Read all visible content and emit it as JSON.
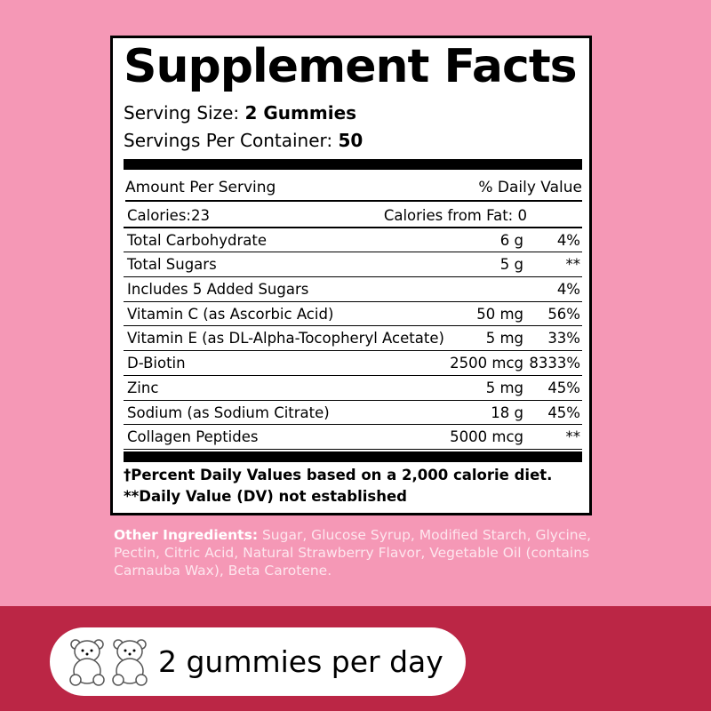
{
  "title": "Supplement Facts",
  "serving_size_label": "Serving Size:",
  "serving_size": "2 Gummies",
  "servings_label": "Servings Per Container:",
  "servings": "50",
  "header": {
    "amount": "Amount Per Serving",
    "dv": "% Daily Value"
  },
  "rows": [
    {
      "name": "Calories:23",
      "amount": "Calories from Fat: 0",
      "dv": ""
    },
    {
      "name": "Total Carbohydrate",
      "amount": "6 g",
      "dv": "4%"
    },
    {
      "name": "Total Sugars",
      "amount": "5 g",
      "dv": "**"
    },
    {
      "name": "Includes 5 Added Sugars",
      "amount": "",
      "dv": "4%"
    },
    {
      "name": "Vitamin C (as Ascorbic Acid)",
      "amount": "50 mg",
      "dv": "56%"
    },
    {
      "name": "Vitamin E (as DL-Alpha-Tocopheryl Acetate)",
      "amount": "5 mg",
      "dv": "33%"
    },
    {
      "name": "D-Biotin",
      "amount": "2500 mcg",
      "dv": "8333%"
    },
    {
      "name": "Zinc",
      "amount": "5 mg",
      "dv": "45%"
    },
    {
      "name": "Sodium (as Sodium Citrate)",
      "amount": "18 g",
      "dv": "45%"
    },
    {
      "name": "Collagen Peptides",
      "amount": "5000 mcg",
      "dv": "**"
    }
  ],
  "footnotes": [
    "†Percent Daily Values based on a 2,000 calorie diet.",
    "**Daily Value (DV) not established"
  ],
  "ingredients": {
    "label": "Other Ingredients:",
    "text": " Sugar, Glucose Syrup, Modified Starch, Glycine, Pectin, Citric Acid, Natural Strawberry Flavor, Vegetable Oil (contains Carnauba Wax), Beta Carotene."
  },
  "dosage": "2 gummies per day",
  "colors": {
    "background": "#f598b6",
    "band": "#bb2645"
  }
}
